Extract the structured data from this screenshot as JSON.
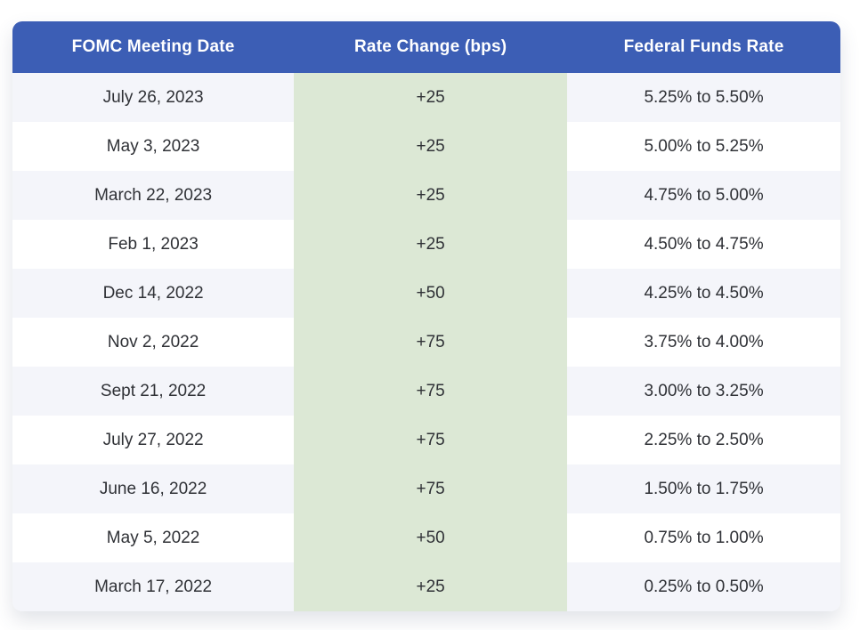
{
  "chart_data": {
    "type": "table",
    "columns": [
      "FOMC Meeting Date",
      "Rate Change (bps)",
      "Federal Funds Rate"
    ],
    "rows": [
      {
        "date": "July 26, 2023",
        "change": "+25",
        "rate": "5.25% to 5.50%"
      },
      {
        "date": "May 3, 2023",
        "change": "+25",
        "rate": "5.00% to 5.25%"
      },
      {
        "date": "March 22, 2023",
        "change": "+25",
        "rate": "4.75% to 5.00%"
      },
      {
        "date": "Feb 1, 2023",
        "change": "+25",
        "rate": "4.50% to 4.75%"
      },
      {
        "date": "Dec 14, 2022",
        "change": "+50",
        "rate": "4.25% to 4.50%"
      },
      {
        "date": "Nov 2, 2022",
        "change": "+75",
        "rate": "3.75% to 4.00%"
      },
      {
        "date": "Sept 21, 2022",
        "change": "+75",
        "rate": "3.00% to 3.25%"
      },
      {
        "date": "July 27, 2022",
        "change": "+75",
        "rate": "2.25% to 2.50%"
      },
      {
        "date": "June 16, 2022",
        "change": "+75",
        "rate": "1.50% to 1.75%"
      },
      {
        "date": "May 5, 2022",
        "change": "+50",
        "rate": "0.75% to 1.00%"
      },
      {
        "date": "March 17, 2022",
        "change": "+25",
        "rate": "0.25% to 0.50%"
      }
    ]
  },
  "colors": {
    "header_bg": "#3c5eb5",
    "header_text": "#ffffff",
    "row_bg": "#ffffff",
    "row_alt_bg": "#f4f5fa",
    "rate_change_col_bg": "#dce8d5",
    "body_text": "#2f3136",
    "page_bg": "#ffffff"
  }
}
